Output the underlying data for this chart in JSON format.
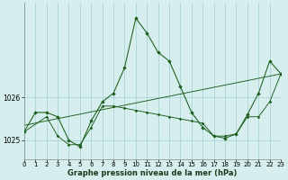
{
  "title": "Graphe pression niveau de la mer (hPa)",
  "background_color": "#d6eeee",
  "grid_color": "#aad4d4",
  "line_color": "#1a5c1a",
  "xlim": [
    0,
    23
  ],
  "ylim": [
    1024.55,
    1028.2
  ],
  "ytick_vals": [
    1025,
    1026
  ],
  "xtick_vals": [
    0,
    1,
    2,
    3,
    4,
    5,
    6,
    7,
    8,
    9,
    10,
    11,
    12,
    13,
    14,
    15,
    16,
    17,
    18,
    19,
    20,
    21,
    22,
    23
  ],
  "line1_x": [
    0,
    1,
    2,
    3,
    4,
    5,
    6,
    7,
    8,
    9,
    10,
    11,
    12,
    13,
    14,
    15,
    16,
    17,
    18,
    19,
    20,
    21,
    22,
    23
  ],
  "line1_y": [
    1025.2,
    1025.65,
    1025.65,
    1025.55,
    1025.0,
    1024.85,
    1025.45,
    1025.9,
    1026.1,
    1026.7,
    1027.85,
    1027.5,
    1027.05,
    1026.85,
    1026.25,
    1025.65,
    1025.3,
    1025.1,
    1025.05,
    1025.15,
    1025.6,
    1026.1,
    1026.85,
    1026.55
  ],
  "line2_x": [
    0,
    2,
    3,
    4,
    5,
    6,
    7,
    8,
    9,
    10,
    11,
    12,
    13,
    14,
    15,
    16,
    17,
    18,
    19,
    20,
    21,
    22,
    23
  ],
  "line2_y": [
    1025.2,
    1025.55,
    1025.1,
    1024.9,
    1024.9,
    1025.3,
    1025.8,
    1025.8,
    1025.75,
    1025.7,
    1025.65,
    1025.6,
    1025.55,
    1025.5,
    1025.45,
    1025.4,
    1025.1,
    1025.1,
    1025.15,
    1025.55,
    1025.55,
    1025.9,
    1026.55
  ],
  "line3_x": [
    0,
    23
  ],
  "line3_y": [
    1025.35,
    1026.55
  ]
}
